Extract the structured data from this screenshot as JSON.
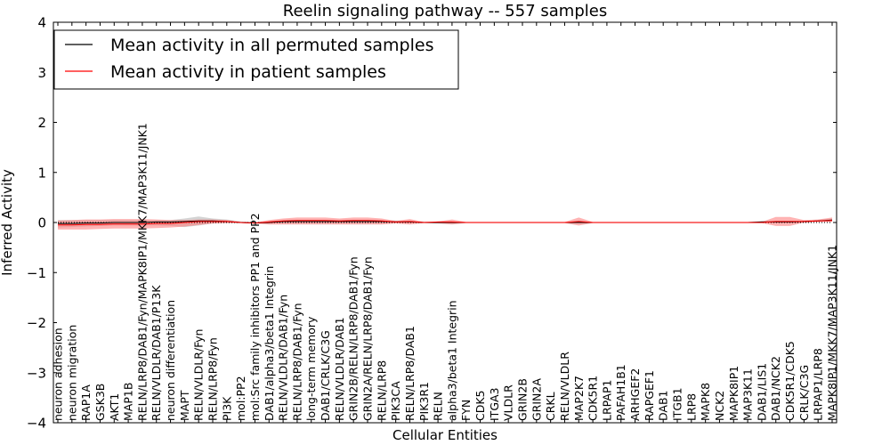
{
  "chart_data": {
    "type": "line",
    "title": "Reelin signaling pathway -- 557 samples",
    "xlabel": "Cellular Entities",
    "ylabel": "Inferred Activity",
    "ylim": [
      -4,
      4
    ],
    "yticks": [
      4,
      3,
      2,
      1,
      0,
      -1,
      -2,
      -3,
      -4
    ],
    "ytick_labels": [
      "4",
      "3",
      "2",
      "1",
      "0",
      "−1",
      "−2",
      "−3",
      "−4"
    ],
    "legend_position": "top-left",
    "categories": [
      "neuron adhesion",
      "neuron migration",
      "RAP1A",
      "GSK3B",
      "AKT1",
      "MAP1B",
      "RELN/LRP8/DAB1/Fyn/MAPK8IP1/MKK7/MAP3K11/JNK1",
      "RELN/VLDLR/DAB1/P13K",
      "neuron differentiation",
      "MAPT",
      "RELN/VLDLR/Fyn",
      "RELN/LRP8/Fyn",
      "PI3K",
      "mol:PP2",
      "mol:Src family inhibitors PP1 and PP2",
      "DAB1/alpha3/beta1 Integrin",
      "RELN/VLDLR/DAB1/Fyn",
      "RELN/LRP8/DAB1/Fyn",
      "long-term memory",
      "DAB1/CRLK/C3G",
      "RELN/VLDLR/DAB1",
      "GRIN2B/RELN/LRP8/DAB1/Fyn",
      "GRIN2A/RELN/LRP8/DAB1/Fyn",
      "RELN/LRP8",
      "PIK3CA",
      "RELN/LRP8/DAB1",
      "PIK3R1",
      "RELN",
      "alpha3/beta1 Integrin",
      "FYN",
      "CDK5",
      "ITGA3",
      "VLDLR",
      "GRIN2B",
      "GRIN2A",
      "CRKL",
      "RELN/VLDLR",
      "MAP2K7",
      "CDK5R1",
      "LRPAP1",
      "PAFAH1B1",
      "ARHGEF2",
      "RAPGEF1",
      "DAB1",
      "ITGB1",
      "LRP8",
      "MAPK8",
      "NCK2",
      "MAPK8IP1",
      "MAP3K11",
      "DAB1/LIS1",
      "DAB1/NCK2",
      "CDK5R1/CDK5",
      "CRLK/C3G",
      "LRPAP1/LRP8",
      "MAPK8IP1/MKK7/MAP3K11/JNK1"
    ],
    "series": [
      {
        "name": "Mean activity in all permuted samples",
        "color": "#000000",
        "values": [
          -0.02,
          -0.02,
          -0.01,
          -0.01,
          0,
          0,
          0,
          0.01,
          0.01,
          0.02,
          0.03,
          0.03,
          0.02,
          0,
          -0.01,
          0,
          0.02,
          0.02,
          0.02,
          0.02,
          0.02,
          0.02,
          0.02,
          0.02,
          0.01,
          0.01,
          0,
          0,
          0,
          0,
          0,
          0,
          0,
          0,
          0,
          0,
          0,
          0,
          0,
          0,
          0,
          0,
          0,
          0,
          0,
          0,
          0,
          0,
          0,
          0,
          0.01,
          0.01,
          0.01,
          0.02,
          0.03,
          0.05
        ],
        "band": {
          "color": "#808080",
          "upper": [
            0.05,
            0.05,
            0.05,
            0.05,
            0.05,
            0.05,
            0.05,
            0.05,
            0.05,
            0.08,
            0.12,
            0.08,
            0.06,
            0.02,
            0.01,
            0.03,
            0.05,
            0.05,
            0.05,
            0.05,
            0.05,
            0.05,
            0.05,
            0.05,
            0.04,
            0.03,
            0.02,
            0.01,
            0.01,
            0.01,
            0.01,
            0.01,
            0.01,
            0.01,
            0.01,
            0.01,
            0.01,
            0.01,
            0.01,
            0.01,
            0.01,
            0.01,
            0.01,
            0.01,
            0.01,
            0.01,
            0.01,
            0.01,
            0.01,
            0.01,
            0.03,
            0.03,
            0.03,
            0.04,
            0.05,
            0.08
          ],
          "lower": [
            -0.1,
            -0.09,
            -0.08,
            -0.07,
            -0.06,
            -0.06,
            -0.06,
            -0.06,
            -0.07,
            -0.09,
            -0.06,
            -0.02,
            -0.01,
            -0.01,
            -0.02,
            -0.02,
            -0.01,
            -0.01,
            -0.01,
            -0.01,
            -0.01,
            -0.01,
            -0.01,
            -0.01,
            -0.01,
            -0.01,
            -0.01,
            -0.01,
            -0.01,
            -0.01,
            -0.01,
            -0.01,
            -0.01,
            -0.01,
            -0.01,
            -0.01,
            -0.01,
            -0.01,
            -0.01,
            -0.01,
            -0.01,
            -0.01,
            -0.01,
            -0.01,
            -0.01,
            -0.01,
            -0.01,
            -0.01,
            -0.01,
            -0.01,
            -0.01,
            -0.01,
            -0.01,
            0,
            0.01,
            0.02
          ]
        }
      },
      {
        "name": "Mean activity in patient samples",
        "color": "#ff0000",
        "values": [
          -0.05,
          -0.05,
          -0.04,
          -0.04,
          -0.03,
          -0.03,
          -0.03,
          -0.02,
          -0.02,
          0,
          0.02,
          0.02,
          0.02,
          0,
          -0.01,
          0.01,
          0.03,
          0.04,
          0.04,
          0.04,
          0.03,
          0.04,
          0.04,
          0.03,
          0.01,
          0.02,
          0,
          0.01,
          0.01,
          0,
          0,
          0,
          0,
          0,
          0,
          0,
          0,
          0.02,
          0,
          0,
          0,
          0,
          0,
          0,
          0,
          0,
          0,
          0,
          0,
          0,
          0,
          0.02,
          0.02,
          0.02,
          0.03,
          0.04
        ],
        "band": {
          "color": "#ff8080",
          "upper": [
            0.04,
            0.05,
            0.06,
            0.06,
            0.07,
            0.07,
            0.07,
            0.06,
            0.05,
            0.05,
            0.06,
            0.06,
            0.05,
            0.01,
            0,
            0.05,
            0.08,
            0.1,
            0.1,
            0.1,
            0.08,
            0.1,
            0.1,
            0.08,
            0.03,
            0.07,
            0.01,
            0.02,
            0.06,
            0.01,
            0.01,
            0.01,
            0.01,
            0.01,
            0.01,
            0.01,
            0.01,
            0.1,
            0.01,
            0.01,
            0.01,
            0.01,
            0.01,
            0.01,
            0.01,
            0.01,
            0.01,
            0.01,
            0.01,
            0.01,
            0.01,
            0.11,
            0.11,
            0.05,
            0.06,
            0.1
          ],
          "lower": [
            -0.14,
            -0.14,
            -0.14,
            -0.13,
            -0.12,
            -0.12,
            -0.12,
            -0.11,
            -0.1,
            -0.08,
            -0.05,
            -0.02,
            -0.01,
            -0.01,
            -0.02,
            -0.04,
            -0.04,
            -0.04,
            -0.04,
            -0.04,
            -0.04,
            -0.04,
            -0.04,
            -0.04,
            -0.02,
            -0.04,
            -0.01,
            -0.02,
            -0.04,
            -0.01,
            -0.01,
            -0.01,
            -0.01,
            -0.01,
            -0.01,
            -0.01,
            -0.01,
            -0.06,
            -0.01,
            -0.01,
            -0.01,
            -0.01,
            -0.01,
            -0.01,
            -0.01,
            -0.01,
            -0.01,
            -0.01,
            -0.01,
            -0.01,
            -0.01,
            -0.07,
            -0.07,
            0,
            0.01,
            0.01
          ]
        }
      }
    ],
    "zero_line": {
      "style": "dotted",
      "value": 0
    }
  }
}
